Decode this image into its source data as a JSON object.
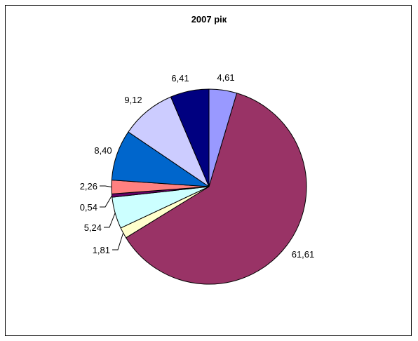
{
  "chart_data": {
    "type": "pie",
    "title": "2007 рік",
    "values": [
      4.61,
      61.61,
      1.81,
      5.24,
      0.54,
      2.26,
      8.4,
      9.12,
      6.41
    ],
    "labels": [
      "4,61",
      "61,61",
      "1,81",
      "5,24",
      "0,54",
      "2,26",
      "8,40",
      "9,12",
      "6,41"
    ],
    "colors": [
      "#9999ff",
      "#993366",
      "#ffffcc",
      "#ccffff",
      "#660066",
      "#ff8080",
      "#0066cc",
      "#ccccff",
      "#000080"
    ],
    "legend": "none",
    "start_angle_deg": 90,
    "direction": "clockwise"
  }
}
